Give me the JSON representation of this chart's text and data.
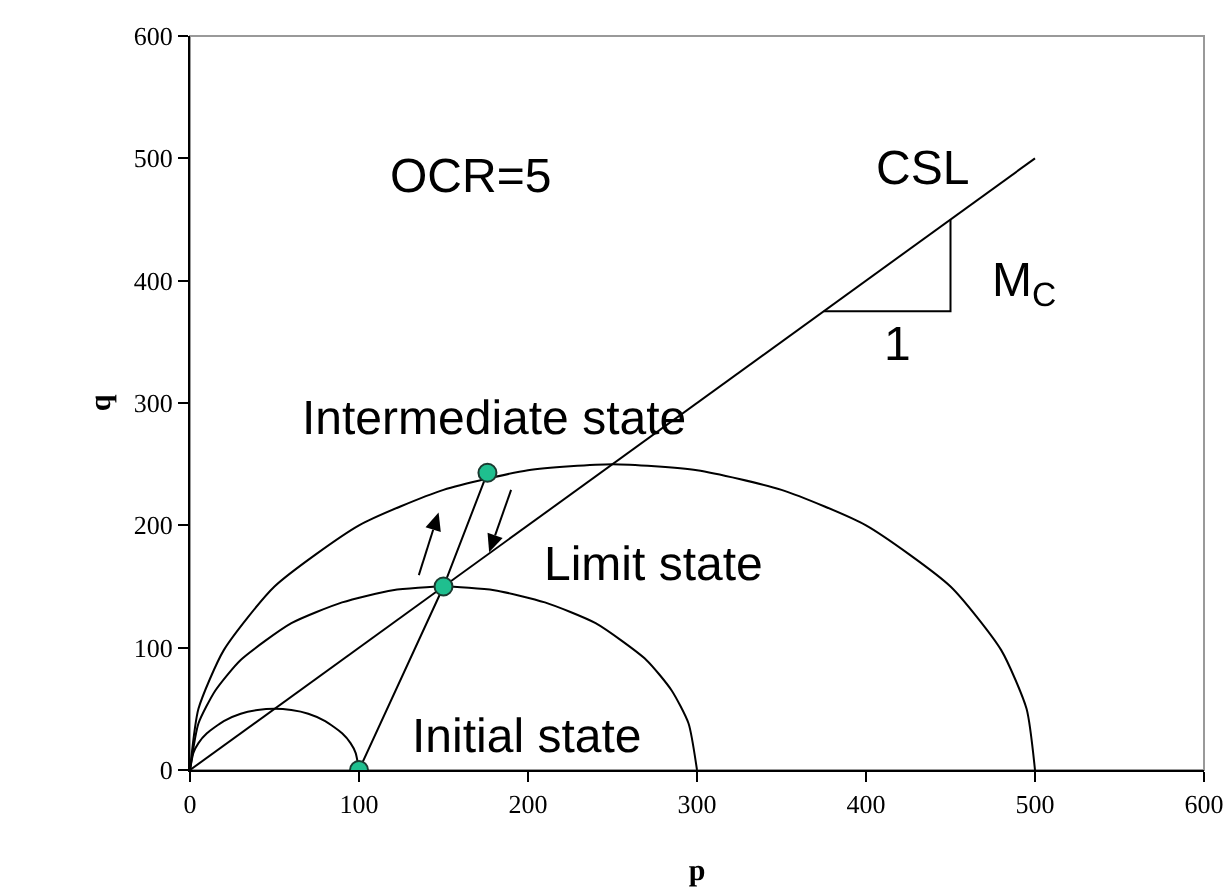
{
  "chart_data": {
    "type": "line",
    "xlabel": "p",
    "ylabel": "q",
    "xlim": [
      0,
      600
    ],
    "xticks": [
      0,
      100,
      200,
      300,
      400,
      500,
      600
    ],
    "ylim": [
      0,
      600
    ],
    "yticks": [
      0,
      100,
      200,
      300,
      400,
      500,
      600
    ],
    "grid": false,
    "line_style": "solid",
    "series": [
      {
        "color": "#000000",
        "marker": "none",
        "x": [
          0,
          2,
          5,
          10,
          20,
          30,
          40,
          50,
          60,
          70,
          80,
          90,
          95,
          98,
          100
        ],
        "values": [
          0,
          14,
          22,
          30,
          40,
          46,
          49,
          50,
          49,
          46,
          40,
          30,
          22,
          14,
          0
        ]
      },
      {
        "type": "line",
        "color": "#000000",
        "marker": "none",
        "x": [
          0,
          5,
          15,
          30,
          60,
          90,
          120,
          150,
          180,
          210,
          240,
          270,
          285,
          295,
          300
        ],
        "values": [
          0,
          38,
          65,
          90,
          120,
          137,
          147,
          150,
          147,
          137,
          120,
          90,
          65,
          38,
          0
        ]
      },
      {
        "type": "line",
        "color": "#000000",
        "marker": "none",
        "x": [
          0,
          5,
          20,
          50,
          100,
          150,
          200,
          250,
          300,
          350,
          400,
          450,
          480,
          495,
          500
        ],
        "values": [
          0,
          50,
          98,
          150,
          200,
          229,
          245,
          250,
          245,
          229,
          200,
          150,
          98,
          50,
          0
        ]
      },
      {
        "type": "line",
        "color": "#000000",
        "marker": "none",
        "x": [
          0,
          500
        ],
        "values": [
          0,
          500
        ]
      },
      {
        "type": "line",
        "color": "#000000",
        "marker": "none",
        "x": [
          375,
          450,
          450
        ],
        "values": [
          375,
          375,
          450
        ]
      },
      {
        "type": "line",
        "color": "#000000",
        "marker": "none",
        "x": [
          100,
          150,
          176
        ],
        "values": [
          0,
          150,
          243
        ]
      },
      {
        "type": "scatter",
        "color": "#1fbf8f",
        "marker": "circle",
        "x": [
          100,
          150,
          176
        ],
        "values": [
          0,
          150,
          243
        ]
      }
    ],
    "annotations": [
      "OCR=5",
      "CSL",
      "M$_{C}$",
      "1",
      "Intermediate state",
      "Limit state",
      "Initial state"
    ]
  }
}
